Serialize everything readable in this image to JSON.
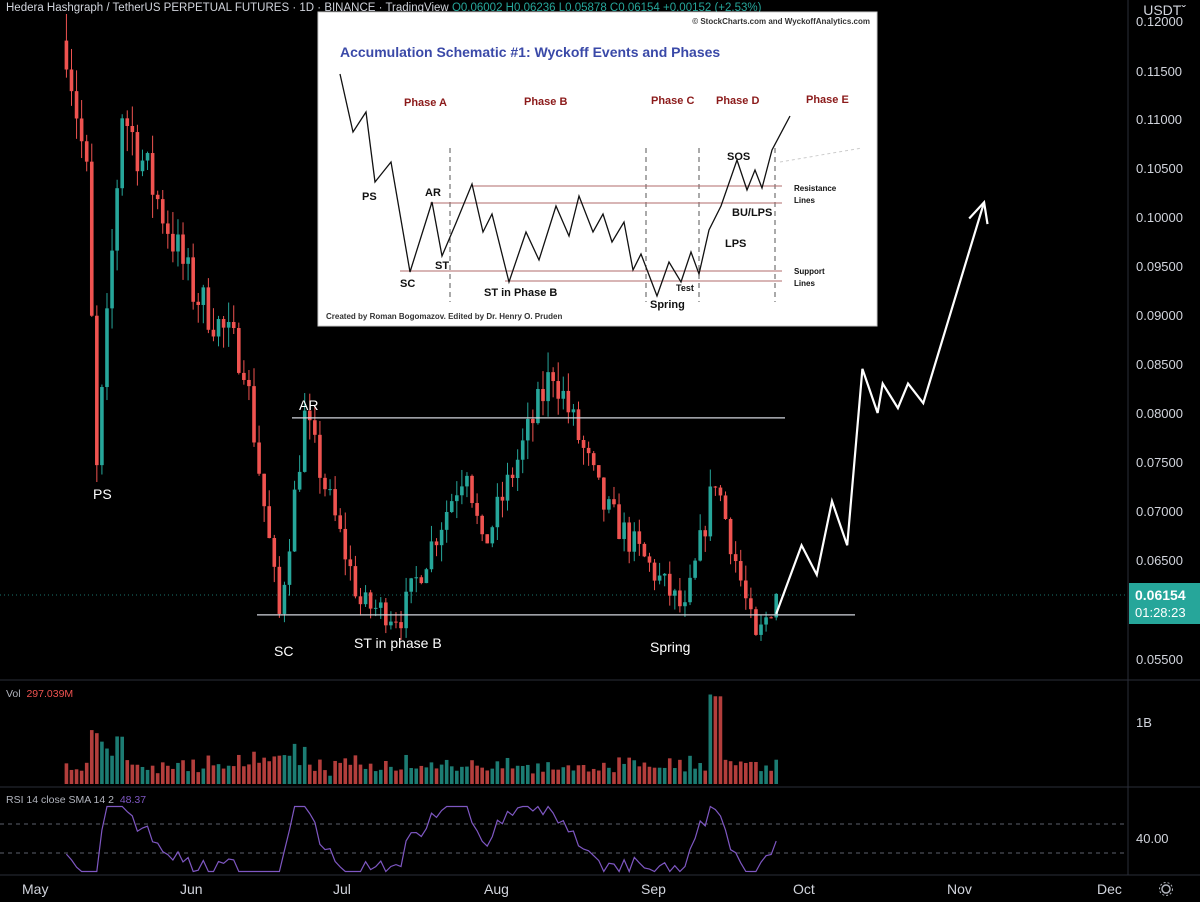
{
  "header": {
    "symbol": "Hedera Hashgraph / TetherUS PERPETUAL FUTURES",
    "interval": "1D",
    "exchange": "BINANCE",
    "source": "TradingView",
    "open": "O0.06002",
    "high": "H0.06236",
    "low": "L0.05878",
    "close": "C0.06154",
    "change": "+0.00152 (+2.53%)"
  },
  "price_axis": {
    "unit": "USDTˇ",
    "ticks": [
      "0.12000",
      "0.11500",
      "0.11000",
      "0.10500",
      "0.10000",
      "0.09500",
      "0.09000",
      "0.08500",
      "0.08000",
      "0.07500",
      "0.07000",
      "0.06500",
      "0.05500"
    ],
    "last_price": "0.06154",
    "countdown": "01:28:23"
  },
  "time_axis": {
    "labels": [
      "May",
      "Jun",
      "Jul",
      "Aug",
      "Sep",
      "Oct",
      "Nov",
      "Dec"
    ]
  },
  "annotations": {
    "ps": "PS",
    "ar": "AR",
    "sc": "SC",
    "st": "ST in phase B",
    "spring": "Spring"
  },
  "volume_pane": {
    "label": "Vol",
    "value": "297.039M",
    "axis_tick": "1B"
  },
  "rsi_pane": {
    "label": "RSI 14 close SMA 14 2",
    "value": "48.37",
    "axis_tick": "40.00"
  },
  "inset": {
    "credit_top": "© StockCharts.com and WyckoffAnalytics.com",
    "title": "Accumulation Schematic #1: Wyckoff Events and Phases",
    "phases": [
      "Phase A",
      "Phase B",
      "Phase C",
      "Phase D",
      "Phase E"
    ],
    "labels": [
      "PS",
      "AR",
      "SC",
      "ST",
      "ST in Phase B",
      "Spring",
      "Test",
      "SOS",
      "BU/LPS",
      "LPS"
    ],
    "resistance_label": [
      "Resistance",
      "Lines"
    ],
    "support_label": [
      "Support",
      "Lines"
    ],
    "credit_bottom": "Created by Roman Bogomazov. Edited by Dr. Henry O. Pruden"
  },
  "colors": {
    "up": "#26a69a",
    "down": "#ef5350",
    "background": "#000000",
    "annotation": "#ffffff",
    "last_price_badge": "#26a69a",
    "rsi": "#7e57c2"
  },
  "chart_data": {
    "type": "candlestick",
    "symbol": "HBARUSDT.P",
    "period": "1D",
    "ylim": [
      0.0535,
      0.121
    ],
    "last": 0.06154,
    "keypoints": [
      {
        "date": "2022-05-07",
        "price": 0.118
      },
      {
        "date": "2022-05-11",
        "price": 0.104
      },
      {
        "date": "2022-05-13",
        "price": 0.074,
        "label": "PS"
      },
      {
        "date": "2022-05-18",
        "price": 0.111
      },
      {
        "date": "2022-06-01",
        "price": 0.0925
      },
      {
        "date": "2022-06-11",
        "price": 0.0855
      },
      {
        "date": "2022-06-18",
        "price": 0.0593,
        "label": "SC"
      },
      {
        "date": "2022-06-23",
        "price": 0.0795,
        "label": "AR"
      },
      {
        "date": "2022-07-04",
        "price": 0.0605
      },
      {
        "date": "2022-07-12",
        "price": 0.0593,
        "label": "ST in phase B"
      },
      {
        "date": "2022-07-25",
        "price": 0.075
      },
      {
        "date": "2022-07-28",
        "price": 0.066
      },
      {
        "date": "2022-08-11",
        "price": 0.0845
      },
      {
        "date": "2022-08-21",
        "price": 0.0705
      },
      {
        "date": "2022-09-06",
        "price": 0.0596,
        "label": "Spring"
      },
      {
        "date": "2022-09-12",
        "price": 0.0735
      },
      {
        "date": "2022-09-20",
        "price": 0.0565
      },
      {
        "date": "2022-09-24",
        "price": 0.06154
      }
    ],
    "resistance": 0.0795,
    "support": 0.0594,
    "projection": [
      {
        "date": "2022-09-24",
        "price": 0.0595
      },
      {
        "date": "2022-09-29",
        "price": 0.0665
      },
      {
        "date": "2022-10-02",
        "price": 0.0635
      },
      {
        "date": "2022-10-05",
        "price": 0.071
      },
      {
        "date": "2022-10-08",
        "price": 0.0665
      },
      {
        "date": "2022-10-11",
        "price": 0.0845
      },
      {
        "date": "2022-10-14",
        "price": 0.08
      },
      {
        "date": "2022-10-15",
        "price": 0.083
      },
      {
        "date": "2022-10-18",
        "price": 0.0805
      },
      {
        "date": "2022-10-20",
        "price": 0.083
      },
      {
        "date": "2022-10-23",
        "price": 0.081
      },
      {
        "date": "2022-11-04",
        "price": 0.1015
      }
    ],
    "rsi_level": 48.37,
    "volume_latest": "297.039M"
  }
}
